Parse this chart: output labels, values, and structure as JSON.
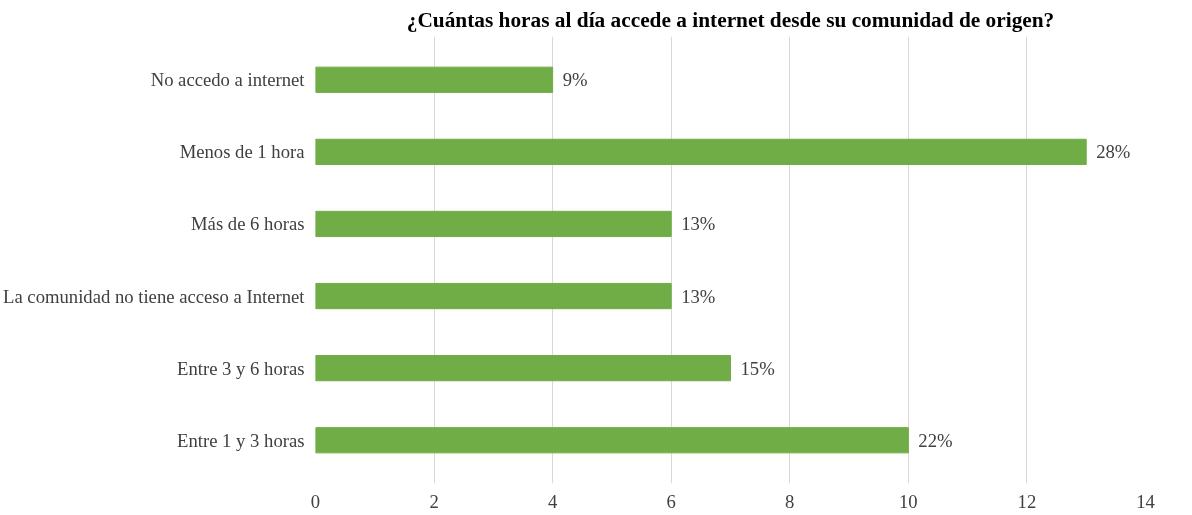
{
  "chart_data": {
    "type": "bar",
    "orientation": "horizontal",
    "title": "¿Cuántas horas al día accede a internet desde su comunidad de origen?",
    "categories": [
      "No accedo a internet",
      "Menos de 1 hora",
      "Más de 6 horas",
      "La comunidad no tiene acceso a Internet",
      "Entre 3 y 6 horas",
      "Entre 1 y 3 horas"
    ],
    "values": [
      4,
      13,
      6,
      6,
      7,
      10
    ],
    "annotations": [
      {
        "text": "9%",
        "x": 4,
        "y": "No accedo a internet"
      },
      {
        "text": "28%",
        "x": 13,
        "y": "Menos de 1 hora"
      },
      {
        "text": "13%",
        "x": 6,
        "y": "Más de 6 horas"
      },
      {
        "text": "13%",
        "x": 6,
        "y": "La comunidad no tiene acceso a Internet"
      },
      {
        "text": "15%",
        "x": 7,
        "y": "Entre 3 y 6 horas"
      },
      {
        "text": "22%",
        "x": 10,
        "y": "Entre 1 y 3 horas"
      }
    ],
    "color": "#70ad47",
    "xlim": [
      0,
      14
    ],
    "xticks": [
      0,
      2,
      4,
      6,
      8,
      10,
      12,
      14
    ],
    "grid": "x"
  }
}
